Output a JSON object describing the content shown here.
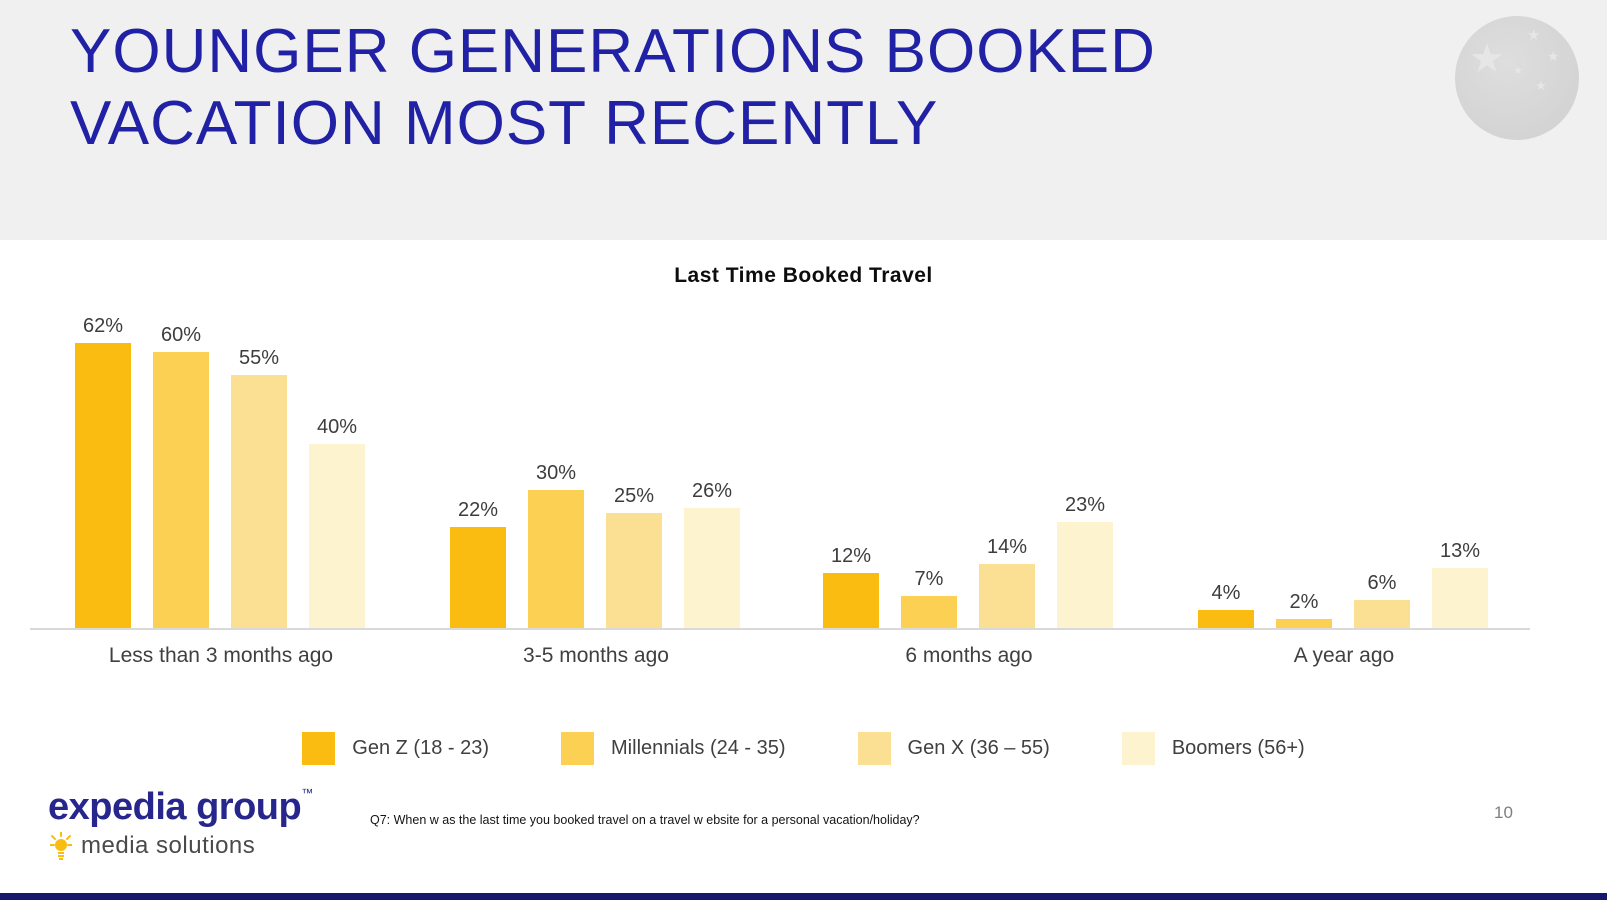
{
  "slide": {
    "title_line1": "YOUNGER GENERATIONS BOOKED",
    "title_line2": "VACATION MOST RECENTLY",
    "page_number": "10",
    "footnote": "Q7: When w as the last time you booked travel on a travel w ebsite for a personal vacation/holiday?"
  },
  "logo": {
    "brand": "expedia group",
    "trademark": "™",
    "subbrand": "media solutions"
  },
  "colors": {
    "header_band": "#F0F0F0",
    "title_blue": "#2121A5",
    "axis_line": "#D9D9D9",
    "bottom_bar_navy": "#17176B",
    "bulb_yellow": "#FBBC12"
  },
  "chart_data": {
    "type": "bar",
    "title": "Last Time Booked Travel",
    "categories": [
      "Less than 3 months ago",
      "3-5 months ago",
      "6 months ago",
      "A year ago"
    ],
    "series": [
      {
        "name": "Gen Z (18 - 23)",
        "color": "#FBBC12",
        "values": [
          62,
          22,
          12,
          4
        ]
      },
      {
        "name": "Millennials (24 - 35)",
        "color": "#FCD153",
        "values": [
          60,
          30,
          7,
          2
        ]
      },
      {
        "name": "Gen X (36 – 55)",
        "color": "#FBDF92",
        "values": [
          55,
          25,
          14,
          6
        ]
      },
      {
        "name": "Boomers (56+)",
        "color": "#FDF3CF",
        "values": [
          40,
          26,
          23,
          13
        ]
      }
    ],
    "value_suffix": "%",
    "ylim": [
      0,
      70
    ],
    "grid": false,
    "legend_position": "bottom",
    "xlabel": "",
    "ylabel": ""
  }
}
